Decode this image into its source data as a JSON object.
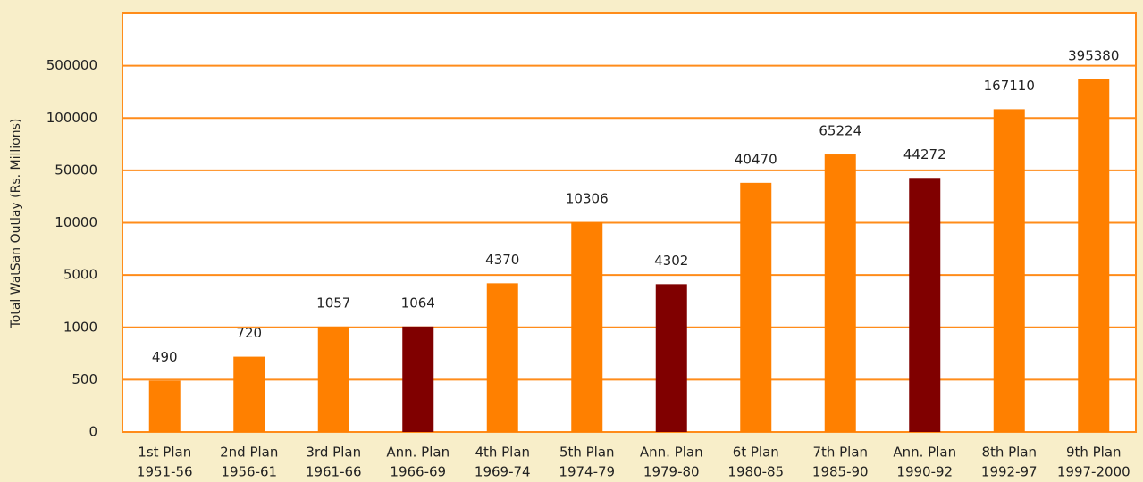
{
  "chart_data": {
    "type": "bar",
    "y_label": "Total WatSan Outlay (Rs. Millions)",
    "categories": [
      [
        "1st Plan",
        "1951-56"
      ],
      [
        "2nd Plan",
        "1956-61"
      ],
      [
        "3rd Plan",
        "1961-66"
      ],
      [
        "Ann. Plan",
        "1966-69"
      ],
      [
        "4th Plan",
        "1969-74"
      ],
      [
        "5th Plan",
        "1974-79"
      ],
      [
        "Ann. Plan",
        "1979-80"
      ],
      [
        "6t Plan",
        "1980-85"
      ],
      [
        "7th Plan",
        "1985-90"
      ],
      [
        "Ann. Plan",
        "1990-92"
      ],
      [
        "8th Plan",
        "1992-97"
      ],
      [
        "9th Plan",
        "1997-2000"
      ]
    ],
    "values": [
      490,
      720,
      1057,
      1064,
      4370,
      10306,
      4302,
      40470,
      65224,
      44272,
      167110,
      395380
    ],
    "colors": [
      "#ff8000",
      "#ff8000",
      "#ff8000",
      "#800000",
      "#ff8000",
      "#ff8000",
      "#800000",
      "#ff8000",
      "#ff8000",
      "#800000",
      "#ff8000",
      "#ff8000"
    ],
    "ylim": [
      0,
      1000000
    ],
    "yticks": [
      0,
      500,
      1000,
      5000,
      10000,
      50000,
      100000,
      500000
    ],
    "grid": true
  }
}
